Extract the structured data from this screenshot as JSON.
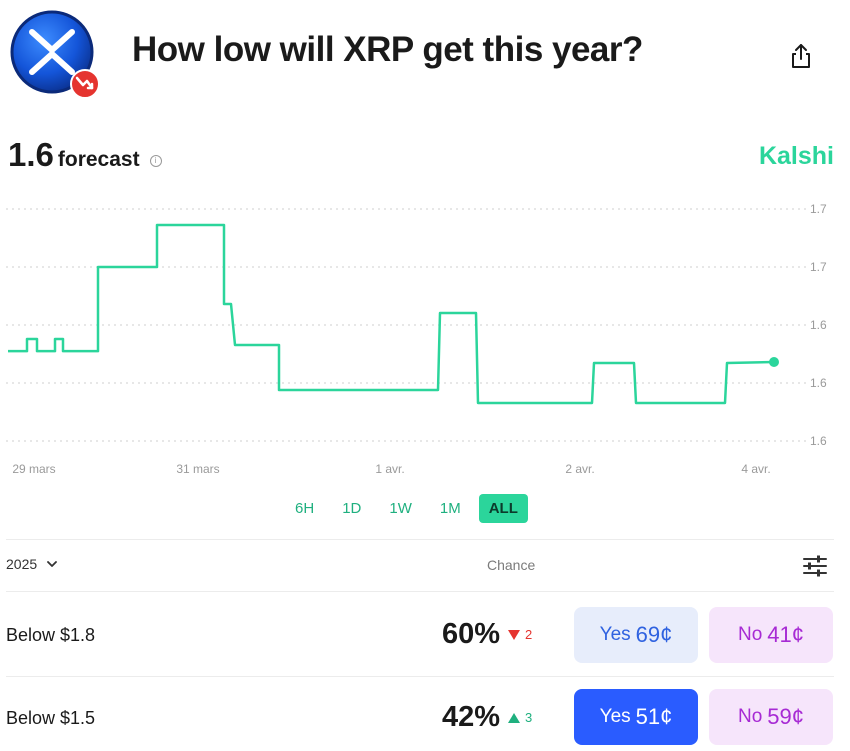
{
  "header": {
    "title": "How low will XRP get this year?"
  },
  "forecast": {
    "value": "1.6",
    "label": "forecast",
    "brand": "Kalshi"
  },
  "chart_data": {
    "type": "line",
    "title": "",
    "x_ticks": [
      "29 mars",
      "31 mars",
      "1 avr.",
      "2 avr.",
      "4 avr."
    ],
    "y_ticks": [
      "1.7",
      "1.7",
      "1.6",
      "1.6",
      "1.6"
    ],
    "grid": true,
    "color": "#2bd59b",
    "series": [
      {
        "values": [
          1.6,
          1.6,
          1.61,
          1.61,
          1.6,
          1.6,
          1.61,
          1.61,
          1.6,
          1.6,
          1.67,
          1.67,
          1.69,
          1.69,
          1.64,
          1.64,
          1.63,
          1.63,
          1.6,
          1.6,
          1.62,
          1.62,
          1.59,
          1.59,
          1.61,
          1.61,
          1.59,
          1.59,
          1.61,
          1.61
        ]
      }
    ]
  },
  "ranges": {
    "items": [
      "6H",
      "1D",
      "1W",
      "1M",
      "ALL"
    ],
    "active": "ALL"
  },
  "table": {
    "year": "2025",
    "chance_header": "Chance",
    "rows": [
      {
        "label": "Below $1.8",
        "pct": "60%",
        "change": "2",
        "direction": "down",
        "yes_label": "Yes",
        "yes_price": "69¢",
        "no_label": "No",
        "no_price": "41¢"
      },
      {
        "label": "Below $1.5",
        "pct": "42%",
        "change": "3",
        "direction": "up",
        "yes_label": "Yes",
        "yes_price": "51¢",
        "no_label": "No",
        "no_price": "59¢"
      }
    ]
  },
  "colors": {
    "accent": "#2bd59b",
    "down": "#e5342f",
    "up": "#1fb07f",
    "yes_solid": "#2a5cff",
    "no_text": "#a72ad4"
  }
}
